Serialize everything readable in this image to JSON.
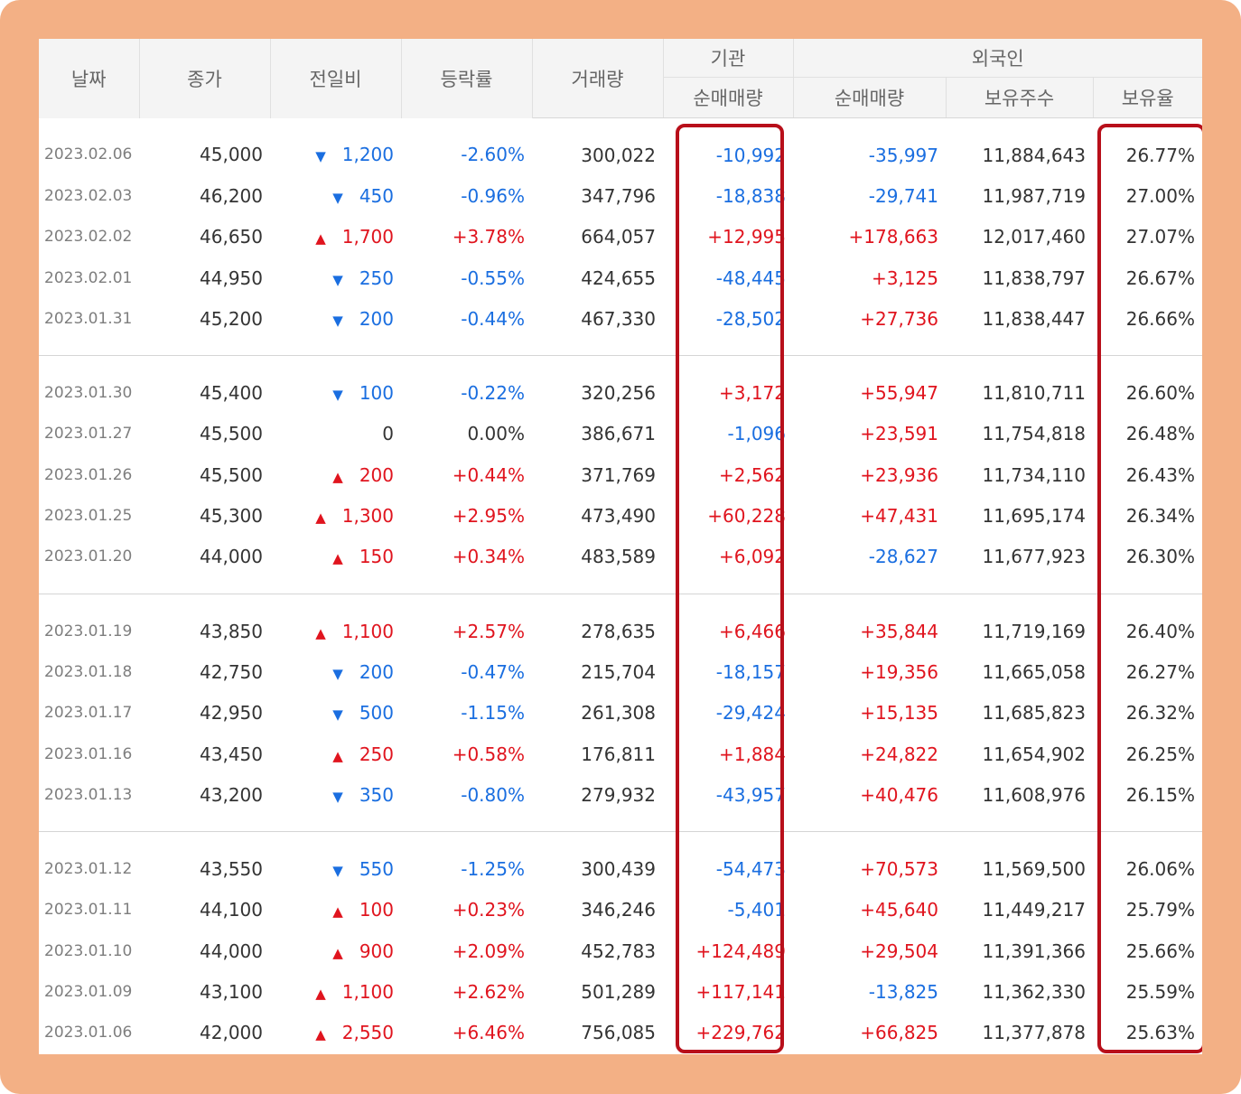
{
  "headers": {
    "date": "날짜",
    "close": "종가",
    "change": "전일비",
    "rate": "등락률",
    "volume": "거래량",
    "institution": "기관",
    "foreign": "외국인",
    "inst_net": "순매매량",
    "for_net": "순매매량",
    "for_holdings": "보유주수",
    "for_ratio": "보유율"
  },
  "rows": [
    {
      "date": "2023.02.06",
      "close": "45,000",
      "dir": "down",
      "change": "1,200",
      "rate": "-2.60%",
      "volume": "300,022",
      "inst": "-10,992",
      "foreign": "-35,997",
      "holdings": "11,884,643",
      "ratio": "26.77%"
    },
    {
      "date": "2023.02.03",
      "close": "46,200",
      "dir": "down",
      "change": "450",
      "rate": "-0.96%",
      "volume": "347,796",
      "inst": "-18,838",
      "foreign": "-29,741",
      "holdings": "11,987,719",
      "ratio": "27.00%"
    },
    {
      "date": "2023.02.02",
      "close": "46,650",
      "dir": "up",
      "change": "1,700",
      "rate": "+3.78%",
      "volume": "664,057",
      "inst": "+12,995",
      "foreign": "+178,663",
      "holdings": "12,017,460",
      "ratio": "27.07%"
    },
    {
      "date": "2023.02.01",
      "close": "44,950",
      "dir": "down",
      "change": "250",
      "rate": "-0.55%",
      "volume": "424,655",
      "inst": "-48,445",
      "foreign": "+3,125",
      "holdings": "11,838,797",
      "ratio": "26.67%"
    },
    {
      "date": "2023.01.31",
      "close": "45,200",
      "dir": "down",
      "change": "200",
      "rate": "-0.44%",
      "volume": "467,330",
      "inst": "-28,502",
      "foreign": "+27,736",
      "holdings": "11,838,447",
      "ratio": "26.66%"
    },
    {
      "date": "2023.01.30",
      "close": "45,400",
      "dir": "down",
      "change": "100",
      "rate": "-0.22%",
      "volume": "320,256",
      "inst": "+3,172",
      "foreign": "+55,947",
      "holdings": "11,810,711",
      "ratio": "26.60%"
    },
    {
      "date": "2023.01.27",
      "close": "45,500",
      "dir": "flat",
      "change": "0",
      "rate": "0.00%",
      "volume": "386,671",
      "inst": "-1,096",
      "foreign": "+23,591",
      "holdings": "11,754,818",
      "ratio": "26.48%"
    },
    {
      "date": "2023.01.26",
      "close": "45,500",
      "dir": "up",
      "change": "200",
      "rate": "+0.44%",
      "volume": "371,769",
      "inst": "+2,562",
      "foreign": "+23,936",
      "holdings": "11,734,110",
      "ratio": "26.43%"
    },
    {
      "date": "2023.01.25",
      "close": "45,300",
      "dir": "up",
      "change": "1,300",
      "rate": "+2.95%",
      "volume": "473,490",
      "inst": "+60,228",
      "foreign": "+47,431",
      "holdings": "11,695,174",
      "ratio": "26.34%"
    },
    {
      "date": "2023.01.20",
      "close": "44,000",
      "dir": "up",
      "change": "150",
      "rate": "+0.34%",
      "volume": "483,589",
      "inst": "+6,092",
      "foreign": "-28,627",
      "holdings": "11,677,923",
      "ratio": "26.30%"
    },
    {
      "date": "2023.01.19",
      "close": "43,850",
      "dir": "up",
      "change": "1,100",
      "rate": "+2.57%",
      "volume": "278,635",
      "inst": "+6,466",
      "foreign": "+35,844",
      "holdings": "11,719,169",
      "ratio": "26.40%"
    },
    {
      "date": "2023.01.18",
      "close": "42,750",
      "dir": "down",
      "change": "200",
      "rate": "-0.47%",
      "volume": "215,704",
      "inst": "-18,157",
      "foreign": "+19,356",
      "holdings": "11,665,058",
      "ratio": "26.27%"
    },
    {
      "date": "2023.01.17",
      "close": "42,950",
      "dir": "down",
      "change": "500",
      "rate": "-1.15%",
      "volume": "261,308",
      "inst": "-29,424",
      "foreign": "+15,135",
      "holdings": "11,685,823",
      "ratio": "26.32%"
    },
    {
      "date": "2023.01.16",
      "close": "43,450",
      "dir": "up",
      "change": "250",
      "rate": "+0.58%",
      "volume": "176,811",
      "inst": "+1,884",
      "foreign": "+24,822",
      "holdings": "11,654,902",
      "ratio": "26.25%"
    },
    {
      "date": "2023.01.13",
      "close": "43,200",
      "dir": "down",
      "change": "350",
      "rate": "-0.80%",
      "volume": "279,932",
      "inst": "-43,957",
      "foreign": "+40,476",
      "holdings": "11,608,976",
      "ratio": "26.15%"
    },
    {
      "date": "2023.01.12",
      "close": "43,550",
      "dir": "down",
      "change": "550",
      "rate": "-1.25%",
      "volume": "300,439",
      "inst": "-54,473",
      "foreign": "+70,573",
      "holdings": "11,569,500",
      "ratio": "26.06%"
    },
    {
      "date": "2023.01.11",
      "close": "44,100",
      "dir": "up",
      "change": "100",
      "rate": "+0.23%",
      "volume": "346,246",
      "inst": "-5,401",
      "foreign": "+45,640",
      "holdings": "11,449,217",
      "ratio": "25.79%"
    },
    {
      "date": "2023.01.10",
      "close": "44,000",
      "dir": "up",
      "change": "900",
      "rate": "+2.09%",
      "volume": "452,783",
      "inst": "+124,489",
      "foreign": "+29,504",
      "holdings": "11,391,366",
      "ratio": "25.66%"
    },
    {
      "date": "2023.01.09",
      "close": "43,100",
      "dir": "up",
      "change": "1,100",
      "rate": "+2.62%",
      "volume": "501,289",
      "inst": "+117,141",
      "foreign": "-13,825",
      "holdings": "11,362,330",
      "ratio": "25.59%"
    },
    {
      "date": "2023.01.06",
      "close": "42,000",
      "dir": "up",
      "change": "2,550",
      "rate": "+6.46%",
      "volume": "756,085",
      "inst": "+229,762",
      "foreign": "+66,825",
      "holdings": "11,377,878",
      "ratio": "25.63%"
    }
  ],
  "colors": {
    "up": "#e0141e",
    "down": "#1a6ee0",
    "highlight": "#b80f1a",
    "frame": "#f3b085"
  },
  "icons": {
    "up": "triangle-up-icon",
    "down": "triangle-down-icon"
  }
}
